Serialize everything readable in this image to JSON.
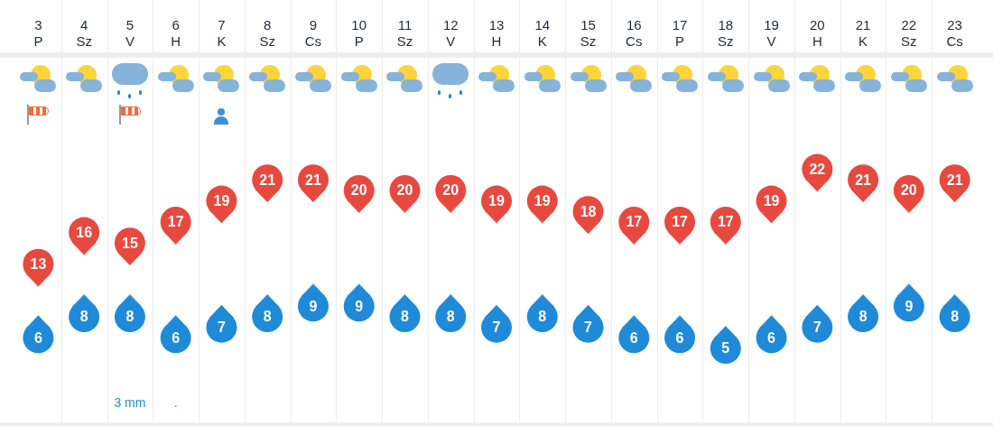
{
  "chart_data": {
    "type": "scatter",
    "categories": [
      "3\nP",
      "4\nSz",
      "5\nV",
      "6\nH",
      "7\nK",
      "8\nSz",
      "9\nCs",
      "10\nP",
      "11\nSz",
      "12\nV",
      "13\nH",
      "14\nK",
      "15\nSz",
      "16\nCs",
      "17\nP",
      "18\nSz",
      "19\nV",
      "20\nH",
      "21\nK",
      "22\nSz",
      "23\nCs"
    ],
    "series": [
      {
        "color": "#e8493f",
        "values": [
          13,
          16,
          15,
          17,
          19,
          21,
          21,
          20,
          20,
          20,
          19,
          19,
          18,
          17,
          17,
          17,
          19,
          22,
          21,
          20,
          21
        ]
      },
      {
        "color": "#1f8ad8",
        "values": [
          6,
          8,
          8,
          6,
          7,
          8,
          9,
          9,
          8,
          8,
          7,
          8,
          7,
          6,
          6,
          5,
          6,
          7,
          8,
          9,
          8
        ]
      }
    ],
    "data_labels": true,
    "tick_labels": "x",
    "grid": "x",
    "annotations": [
      "3 mm",
      "."
    ]
  }
}
